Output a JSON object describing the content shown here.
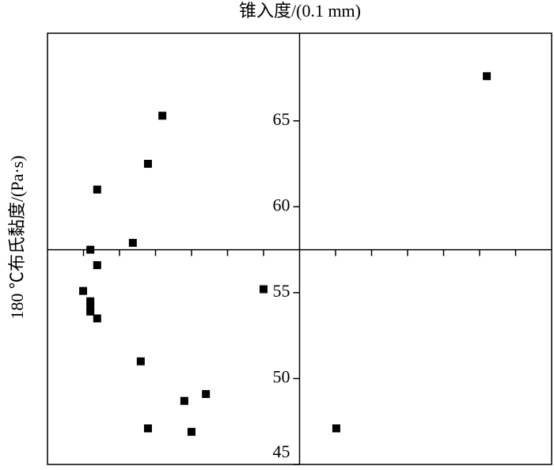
{
  "chart_data": {
    "type": "scatter",
    "x_label": "锥入度/(0.1 mm)",
    "y_label": "180 ℃布氏黏度/(Pa·s)",
    "color": "#000000",
    "x": [
      12.2,
      3.19,
      2.79,
      1.38,
      2.37,
      1.19,
      1.38,
      0.99,
      1.19,
      1.19,
      1.19,
      1.38,
      6.0,
      2.59,
      3.8,
      4.4,
      2.79,
      4.0,
      8.02
    ],
    "y": [
      67.6,
      65.3,
      62.5,
      61.0,
      57.9,
      57.5,
      56.6,
      55.1,
      54.5,
      54.2,
      53.9,
      53.5,
      55.2,
      51.0,
      48.7,
      49.1,
      47.1,
      46.9,
      47.1
    ],
    "xlim": [
      0,
      14
    ],
    "ylim": [
      45,
      70.1
    ],
    "xticks": [
      1,
      2,
      3,
      4,
      5,
      6,
      8,
      9,
      10,
      11,
      12,
      13
    ],
    "yticks": [
      45,
      50,
      55,
      60,
      65
    ],
    "x_axis_at": 57.5,
    "y_axis_at": 7
  }
}
